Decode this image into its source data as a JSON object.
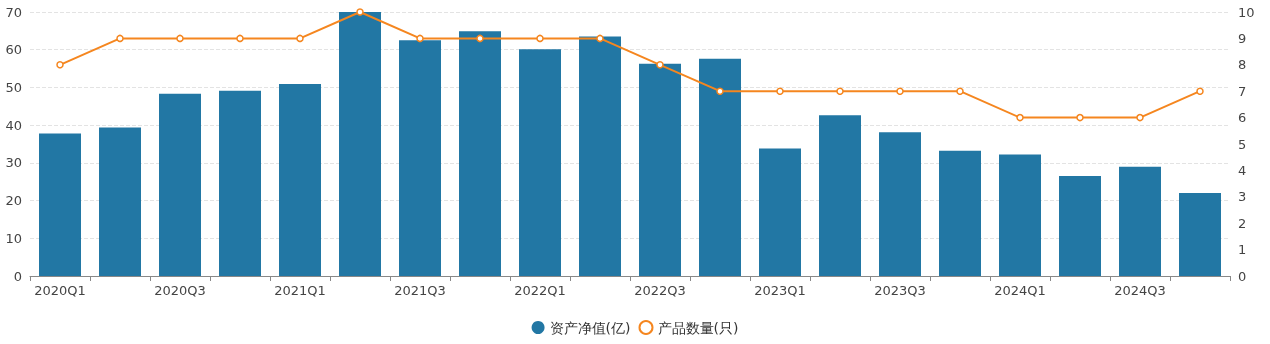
{
  "chart_data": {
    "type": "bar",
    "categories": [
      "2020Q1",
      null,
      "2020Q3",
      null,
      "2021Q1",
      null,
      "2021Q3",
      null,
      "2022Q1",
      null,
      "2022Q3",
      null,
      "2023Q1",
      null,
      "2023Q3",
      null,
      "2024Q1",
      null,
      "2024Q3",
      null
    ],
    "series": [
      {
        "name": "资产净值(亿)",
        "color": "#2277a4",
        "values": [
          37.8,
          39.4,
          48.3,
          49.1,
          50.9,
          70,
          62.5,
          64.9,
          60.1,
          63.5,
          56.3,
          57.6,
          33.8,
          42.6,
          38.1,
          33.2,
          32.2,
          26.5,
          29.0,
          22.0
        ]
      },
      {
        "name": "产品数量(只)",
        "type": "line",
        "axis": "y2",
        "color": "#f5861f",
        "values": [
          8,
          9,
          9,
          9,
          9,
          10,
          9,
          9,
          9,
          9,
          8,
          7,
          7,
          7,
          7,
          7,
          6,
          6,
          6,
          7
        ]
      }
    ],
    "ylim": [
      0,
      70
    ],
    "yticks": [
      0,
      10,
      20,
      30,
      40,
      50,
      60,
      70
    ],
    "y2lim": [
      0,
      10
    ],
    "y2ticks": [
      0,
      1,
      2,
      3,
      4,
      5,
      6,
      7,
      8,
      9,
      10
    ],
    "grid": "y",
    "legend": "bottom",
    "marker": "circle",
    "line_style": "solid"
  }
}
